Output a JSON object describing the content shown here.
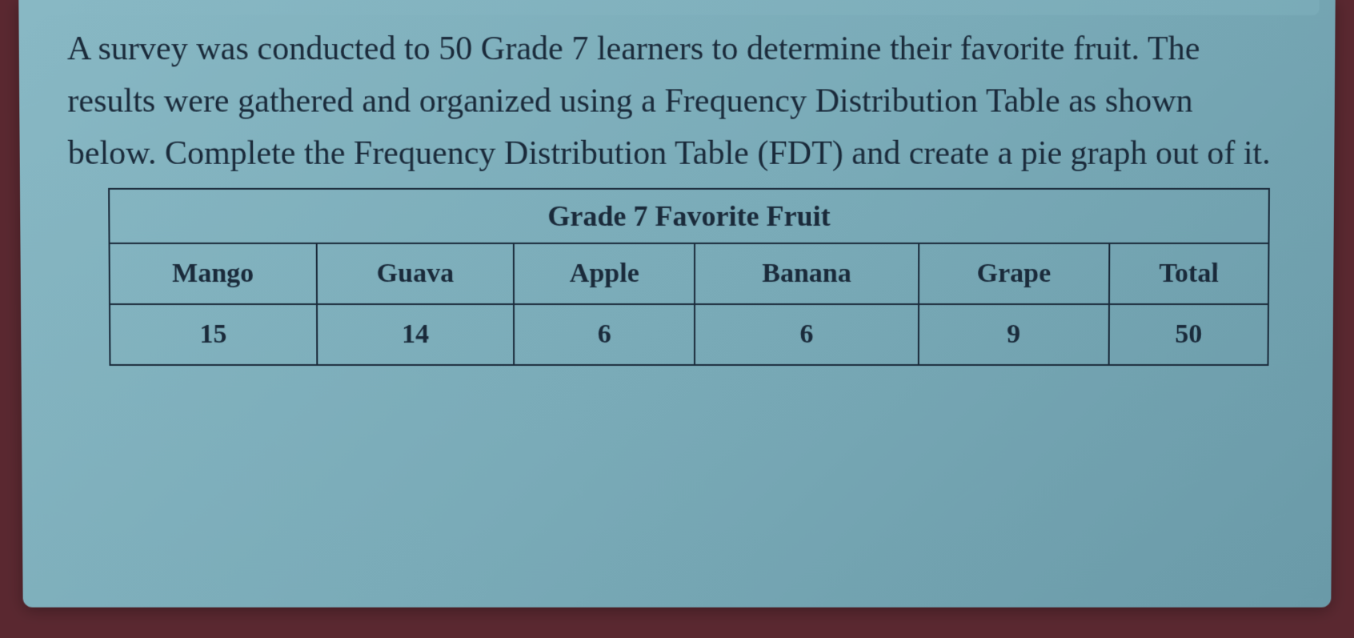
{
  "question": {
    "text": "A survey was conducted to 50 Grade 7 learners to determine their favorite fruit. The results were gathered and organized using a Frequency Distribution Table as shown below. Complete the Frequency Distribution Table (FDT) and create a pie graph out of it.",
    "text_color": "#1a2a3a",
    "fontsize": 42
  },
  "table": {
    "title": "Grade 7 Favorite Fruit",
    "title_fontsize": 36,
    "columns": [
      "Mango",
      "Guava",
      "Apple",
      "Banana",
      "Grape",
      "Total"
    ],
    "values": [
      "15",
      "14",
      "6",
      "6",
      "9",
      "50"
    ],
    "border_color": "#1a2a3a",
    "text_color": "#1a2a3a",
    "header_fontsize": 34,
    "cell_fontsize": 34
  },
  "styling": {
    "slide_background_gradient": [
      "#88b8c4",
      "#7aabb8",
      "#6a9aa8"
    ],
    "outer_background": "#5a2830",
    "font_family": "Georgia, serif"
  }
}
